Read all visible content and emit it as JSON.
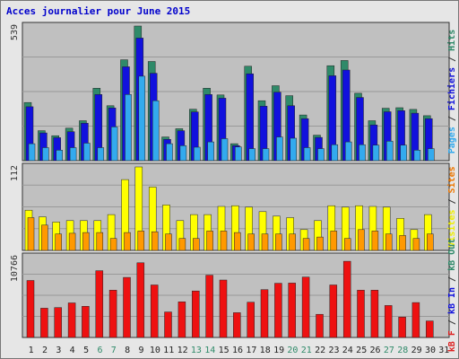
{
  "title": "Acces journalier pour June 2015",
  "chart_data": {
    "type": "bar",
    "title": "Acces journalier pour June 2015",
    "categories": [
      "1",
      "2",
      "3",
      "4",
      "5",
      "6",
      "7",
      "8",
      "9",
      "10",
      "11",
      "12",
      "13",
      "14",
      "15",
      "16",
      "17",
      "18",
      "19",
      "20",
      "21",
      "22",
      "23",
      "24",
      "25",
      "26",
      "27",
      "28",
      "29",
      "30",
      "31"
    ],
    "weekend_days": [
      "6",
      "7",
      "13",
      "14",
      "20",
      "21",
      "27",
      "28"
    ],
    "panels": [
      {
        "name": "hits",
        "max_label": "539",
        "ymax": 539,
        "ylabel_parts": [
          {
            "text": "Pages",
            "color": "#33aaee"
          },
          {
            "text": " / ",
            "color": "#333333"
          },
          {
            "text": "Fichiers",
            "color": "#1111dd"
          },
          {
            "text": " / ",
            "color": "#333333"
          },
          {
            "text": "Hits",
            "color": "#2f8a69"
          }
        ],
        "series": [
          {
            "name": "Hits",
            "color": "#2f8a69",
            "values": [
              233,
              120,
              100,
              130,
              160,
              290,
              220,
              404,
              539,
              397,
              95,
              128,
              206,
              290,
              263,
              68,
              378,
              240,
              300,
              260,
              183,
              102,
              380,
              401,
              270,
              160,
              210,
              212,
              205,
              180,
              0
            ]
          },
          {
            "name": "Fichiers",
            "color": "#1111dd",
            "values": [
              216,
              111,
              92,
              116,
              150,
              265,
              211,
              376,
              491,
              350,
              85,
              120,
              195,
              265,
              250,
              60,
              348,
              218,
              274,
              220,
              168,
              93,
              340,
              363,
              253,
              143,
              196,
              200,
              190,
              168,
              0
            ]
          },
          {
            "name": "Pages",
            "color": "#33aaee",
            "values": [
              68,
              52,
              42,
              52,
              70,
              52,
              135,
              265,
              338,
              240,
              68,
              60,
              54,
              75,
              88,
              55,
              48,
              48,
              95,
              90,
              52,
              48,
              64,
              75,
              64,
              62,
              78,
              62,
              42,
              48,
              0
            ]
          }
        ]
      },
      {
        "name": "visits",
        "max_label": "112",
        "ymax": 112,
        "ylabel_parts": [
          {
            "text": "Visites",
            "color": "#eeee00"
          },
          {
            "text": " / ",
            "color": "#333333"
          },
          {
            "text": "Sites",
            "color": "#ee7700"
          }
        ],
        "series": [
          {
            "name": "Visites",
            "color": "#ffff00",
            "values": [
              54,
              45,
              38,
              40,
              40,
              40,
              48,
              95,
              112,
              85,
              61,
              40,
              48,
              48,
              59,
              60,
              58,
              52,
              46,
              44,
              28,
              40,
              60,
              58,
              60,
              59,
              58,
              43,
              28,
              48,
              0
            ]
          },
          {
            "name": "Sites",
            "color": "#ff9900",
            "values": [
              44,
              34,
              22,
              23,
              24,
              24,
              16,
              24,
              26,
              25,
              22,
              16,
              16,
              26,
              26,
              24,
              22,
              22,
              22,
              22,
              16,
              18,
              26,
              16,
              28,
              26,
              22,
              20,
              16,
              22,
              0
            ]
          }
        ]
      },
      {
        "name": "kb",
        "max_label": "10766",
        "ymax": 10766,
        "ylabel_parts": [
          {
            "text": "kB F",
            "color": "#dd2222"
          },
          {
            "text": " / ",
            "color": "#333333"
          },
          {
            "text": "kB In",
            "color": "#1111dd"
          },
          {
            "text": " / ",
            "color": "#333333"
          },
          {
            "text": "kB Out",
            "color": "#2f8a69"
          }
        ],
        "series": [
          {
            "name": "kB F",
            "color": "#ee1111",
            "values": [
              7600,
              3900,
              3980,
              4600,
              4150,
              8900,
              6300,
              8000,
              9950,
              7000,
              3400,
              4750,
              6200,
              8300,
              7650,
              3300,
              4700,
              6380,
              7230,
              7250,
              8050,
              3090,
              7000,
              10150,
              6300,
              6300,
              4260,
              2720,
              4650,
              2200,
              0
            ]
          }
        ]
      }
    ]
  }
}
